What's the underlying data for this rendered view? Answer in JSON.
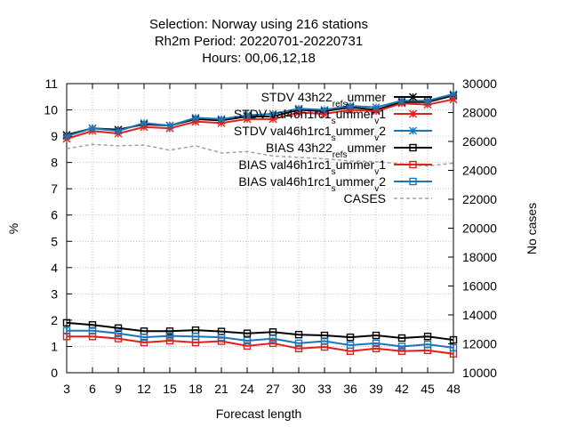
{
  "chart_data": {
    "type": "line",
    "title_lines": [
      "Selection: Norway using   216 stations",
      "Rh2m   Period: 20220701-20220731",
      "Hours:  00,06,12,18"
    ],
    "xlabel": "Forecast length",
    "ylabel": "%",
    "y2label": "No cases",
    "x": [
      3,
      6,
      9,
      12,
      15,
      18,
      21,
      24,
      27,
      30,
      33,
      36,
      39,
      42,
      45,
      48
    ],
    "xlim": [
      3,
      48
    ],
    "ylim": [
      0,
      11
    ],
    "y2lim": [
      10000,
      30000
    ],
    "y_ticks": [
      0,
      1,
      2,
      3,
      4,
      5,
      6,
      7,
      8,
      9,
      10,
      11
    ],
    "y2_ticks": [
      10000,
      12000,
      14000,
      16000,
      18000,
      20000,
      22000,
      24000,
      26000,
      28000,
      30000
    ],
    "grid": true,
    "legend_position": "top-right",
    "series": [
      {
        "name": "STDV 43h22_ref_summer",
        "legend_parts": [
          [
            "STDV 43h22",
            ""
          ],
          [
            "ref",
            "sub"
          ],
          [
            "",
            ""
          ],
          [
            "s",
            "sub"
          ],
          [
            "ummer",
            ""
          ]
        ],
        "color": "#000000",
        "marker": "asterisk",
        "axis": "y",
        "values": [
          9.05,
          9.3,
          9.25,
          9.45,
          9.4,
          9.65,
          9.6,
          9.75,
          9.75,
          10.0,
          9.95,
          10.1,
          10.0,
          10.3,
          10.3,
          10.55
        ]
      },
      {
        "name": "STDV val46h1rc1_summer_v1",
        "legend_parts": [
          [
            "STDV val46h1rc1",
            ""
          ],
          [
            "s",
            "sub"
          ],
          [
            "ummer",
            ""
          ],
          [
            "v",
            "sub"
          ],
          [
            "1",
            ""
          ]
        ],
        "color": "#e0201a",
        "marker": "asterisk",
        "axis": "y",
        "values": [
          8.9,
          9.2,
          9.1,
          9.35,
          9.3,
          9.55,
          9.5,
          9.65,
          9.65,
          9.9,
          9.85,
          10.0,
          9.95,
          10.25,
          10.2,
          10.4
        ]
      },
      {
        "name": "STDV val46h1rc1_summer_v2",
        "legend_parts": [
          [
            "STDV val46h1rc1",
            ""
          ],
          [
            "s",
            "sub"
          ],
          [
            "ummer",
            ""
          ],
          [
            "v",
            "sub"
          ],
          [
            "2",
            ""
          ]
        ],
        "color": "#1a76b5",
        "marker": "asterisk",
        "axis": "y",
        "values": [
          9.0,
          9.3,
          9.2,
          9.5,
          9.4,
          9.7,
          9.65,
          9.8,
          9.85,
          10.05,
          10.0,
          10.15,
          10.1,
          10.35,
          10.35,
          10.6
        ]
      },
      {
        "name": "BIAS 43h22_ref_summer",
        "legend_parts": [
          [
            "BIAS 43h22",
            ""
          ],
          [
            "ref",
            "sub"
          ],
          [
            "",
            ""
          ],
          [
            "s",
            "sub"
          ],
          [
            "ummer",
            ""
          ]
        ],
        "color": "#000000",
        "marker": "square",
        "axis": "y",
        "values": [
          1.9,
          1.82,
          1.7,
          1.58,
          1.58,
          1.62,
          1.57,
          1.5,
          1.55,
          1.45,
          1.42,
          1.35,
          1.42,
          1.32,
          1.38,
          1.25
        ]
      },
      {
        "name": "BIAS val46h1rc1_summer_v1",
        "legend_parts": [
          [
            "BIAS val46h1rc1",
            ""
          ],
          [
            "s",
            "sub"
          ],
          [
            "ummer",
            ""
          ],
          [
            "v",
            "sub"
          ],
          [
            "1",
            ""
          ]
        ],
        "color": "#e0201a",
        "marker": "square",
        "axis": "y",
        "values": [
          1.38,
          1.38,
          1.3,
          1.15,
          1.22,
          1.15,
          1.2,
          1.02,
          1.12,
          0.92,
          0.98,
          0.82,
          0.92,
          0.82,
          0.85,
          0.72
        ]
      },
      {
        "name": "BIAS val46h1rc1_summer_v2",
        "legend_parts": [
          [
            "BIAS val46h1rc1",
            ""
          ],
          [
            "s",
            "sub"
          ],
          [
            "ummer",
            ""
          ],
          [
            "v",
            "sub"
          ],
          [
            "2",
            ""
          ]
        ],
        "color": "#1a76b5",
        "marker": "square",
        "axis": "y",
        "values": [
          1.6,
          1.6,
          1.5,
          1.35,
          1.4,
          1.38,
          1.35,
          1.22,
          1.3,
          1.12,
          1.2,
          1.05,
          1.12,
          1.0,
          1.08,
          0.95
        ]
      },
      {
        "name": "CASES",
        "legend_parts": [
          [
            "CASES",
            ""
          ]
        ],
        "color": "#a0a0a0",
        "marker": "none",
        "dashed": true,
        "axis": "y2",
        "values": [
          25500,
          25800,
          25700,
          25750,
          25400,
          25700,
          25200,
          25300,
          25000,
          24900,
          24800,
          24650,
          24600,
          24450,
          24300,
          24500
        ]
      }
    ]
  }
}
